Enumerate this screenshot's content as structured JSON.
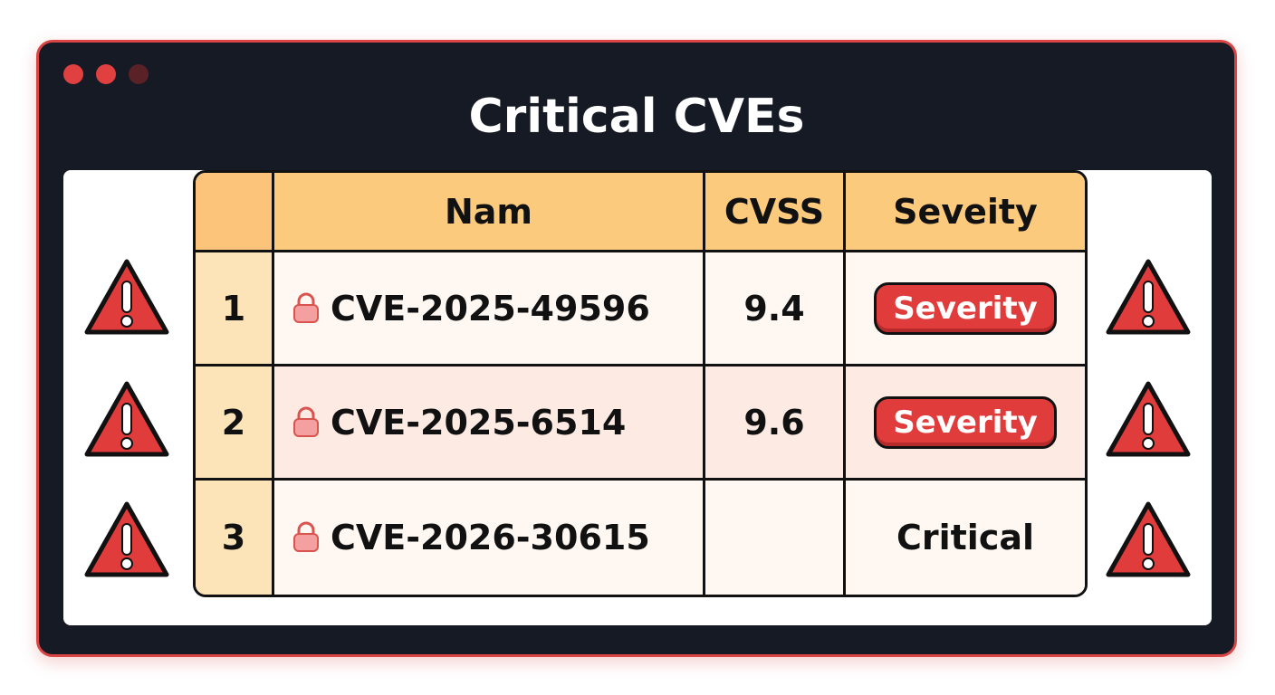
{
  "window": {
    "title": "Critical CVEs"
  },
  "table": {
    "header": [
      "Nam",
      "CVSS",
      "Seveity"
    ],
    "rows": [
      {
        "number": 1,
        "name": "CVE-2025-49596",
        "cvss": 9.4,
        "severity": "Severity"
      },
      {
        "number": 2,
        "name": "CVE-2025-6514",
        "cvss": 9.6,
        "severity": "Severity"
      },
      {
        "number": 3,
        "name": "CVE-2026-30615",
        "severity": "Critical"
      }
    ]
  }
}
